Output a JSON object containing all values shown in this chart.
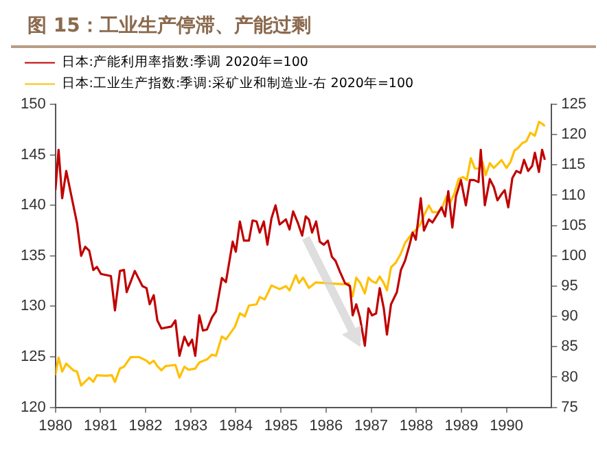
{
  "chart_data": {
    "type": "line",
    "title": "图 15：工业生产停滞、产能过剩",
    "xlim": [
      1980,
      1991
    ],
    "xticks": [
      1980,
      1981,
      1982,
      1983,
      1984,
      1985,
      1986,
      1987,
      1988,
      1989,
      1990
    ],
    "ylim": [
      120,
      150
    ],
    "yticks": [
      120,
      125,
      130,
      135,
      140,
      145,
      150
    ],
    "y2lim": [
      75,
      125
    ],
    "y2ticks": [
      75,
      80,
      85,
      90,
      95,
      100,
      105,
      110,
      115,
      120,
      125
    ],
    "grid": false,
    "legend": "top left",
    "marker": "none",
    "line_style": "solid",
    "series": [
      {
        "name": "日本:产能利用率指数:季调 2020年=100",
        "color": "#c00000",
        "axis": "y",
        "x": [
          1980.0,
          1980.07,
          1980.15,
          1980.24,
          1980.48,
          1980.57,
          1980.66,
          1980.75,
          1980.84,
          1980.92,
          1981.01,
          1981.23,
          1981.32,
          1981.43,
          1981.52,
          1981.58,
          1981.76,
          1981.93,
          1982.02,
          1982.09,
          1982.18,
          1982.26,
          1982.35,
          1982.57,
          1982.66,
          1982.75,
          1982.86,
          1982.95,
          1983.03,
          1983.1,
          1983.19,
          1983.27,
          1983.36,
          1983.47,
          1983.56,
          1983.69,
          1983.78,
          1983.93,
          1984.0,
          1984.09,
          1984.18,
          1984.29,
          1984.37,
          1984.46,
          1984.53,
          1984.62,
          1984.7,
          1984.79,
          1984.88,
          1984.97,
          1985.11,
          1985.19,
          1985.27,
          1985.38,
          1985.47,
          1985.55,
          1985.62,
          1985.69,
          1985.78,
          1985.86,
          1985.95,
          1986.04,
          1986.13,
          1986.21,
          1986.31,
          1986.42,
          1986.53,
          1986.59,
          1986.67,
          1986.75,
          1986.86,
          1986.94,
          1987.02,
          1987.11,
          1987.19,
          1987.28,
          1987.35,
          1987.44,
          1987.57,
          1987.66,
          1987.75,
          1987.84,
          1987.92,
          1987.99,
          1988.1,
          1988.17,
          1988.28,
          1988.36,
          1988.47,
          1988.56,
          1988.64,
          1988.71,
          1988.8,
          1988.88,
          1988.99,
          1989.1,
          1989.19,
          1989.28,
          1989.38,
          1989.43,
          1989.52,
          1989.63,
          1989.72,
          1989.8,
          1989.89,
          1989.96,
          1990.04,
          1990.13,
          1990.22,
          1990.31,
          1990.39,
          1990.48,
          1990.57,
          1990.63,
          1990.72,
          1990.79,
          1990.85
        ],
        "values": [
          141.5,
          145.5,
          140.7,
          143.4,
          138.2,
          135,
          135.9,
          135.5,
          133.6,
          133.9,
          133.2,
          133,
          129.6,
          133.5,
          133.6,
          131.4,
          133.5,
          132,
          131.8,
          130.2,
          131.1,
          128.6,
          127.8,
          128,
          128.6,
          125.1,
          127,
          126.1,
          126.7,
          125.1,
          129.1,
          127.6,
          127.7,
          128.9,
          129.5,
          132.8,
          132.4,
          136.4,
          135.4,
          138.4,
          136.5,
          136.5,
          138.5,
          138.4,
          137.3,
          138.4,
          136.1,
          138.7,
          140,
          138.1,
          138.6,
          137.6,
          139.4,
          138.2,
          137,
          138.9,
          138.6,
          137.3,
          138.4,
          136.4,
          136.1,
          136.5,
          134.9,
          134.5,
          133.4,
          132.3,
          132,
          129.1,
          130.2,
          128.9,
          126.1,
          129.8,
          129.1,
          129.3,
          131.8,
          129.8,
          127.2,
          130.2,
          131.4,
          133.6,
          134.5,
          135.9,
          137.3,
          136.6,
          140.7,
          137.5,
          138.6,
          138.3,
          139.1,
          139.8,
          138.9,
          141.4,
          137.8,
          140.9,
          142.5,
          140,
          142.5,
          142.5,
          142.3,
          145.5,
          140,
          142.6,
          141.8,
          140.5,
          141.1,
          141.5,
          139.8,
          142.7,
          143.4,
          143.2,
          144.5,
          143.4,
          143.9,
          145.2,
          143.3,
          145.5,
          144.5
        ]
      },
      {
        "name": "日本:工业生产指数:季调:采矿业和制造业-右 2020年=100",
        "color": "#ffc000",
        "axis": "y2",
        "x": [
          1980.0,
          1980.07,
          1980.15,
          1980.24,
          1980.4,
          1980.48,
          1980.57,
          1980.75,
          1980.84,
          1980.92,
          1981.12,
          1981.25,
          1981.32,
          1981.43,
          1981.52,
          1981.67,
          1981.85,
          1982.02,
          1982.09,
          1982.18,
          1982.26,
          1982.35,
          1982.44,
          1982.66,
          1982.75,
          1982.86,
          1982.95,
          1983.1,
          1983.19,
          1983.36,
          1983.47,
          1983.56,
          1983.69,
          1983.78,
          1983.98,
          1984.09,
          1984.2,
          1984.29,
          1984.46,
          1984.53,
          1984.64,
          1984.79,
          1984.97,
          1985.11,
          1985.19,
          1985.33,
          1985.4,
          1985.49,
          1985.62,
          1985.77,
          1986.42,
          1986.5,
          1986.59,
          1986.67,
          1986.76,
          1986.86,
          1986.94,
          1987.02,
          1987.11,
          1987.19,
          1987.28,
          1987.35,
          1987.44,
          1987.55,
          1987.66,
          1987.75,
          1987.84,
          1987.92,
          1988.01,
          1988.1,
          1988.18,
          1988.28,
          1988.36,
          1988.47,
          1988.56,
          1988.67,
          1988.75,
          1988.84,
          1988.94,
          1989.04,
          1989.12,
          1989.21,
          1989.3,
          1989.39,
          1989.47,
          1989.54,
          1989.63,
          1989.72,
          1989.8,
          1989.89,
          1990.0,
          1990.09,
          1990.18,
          1990.26,
          1990.35,
          1990.44,
          1990.53,
          1990.63,
          1990.72,
          1990.79,
          1990.85
        ],
        "values": [
          80.3,
          83.2,
          80.9,
          82.2,
          81.1,
          80.9,
          78.6,
          79.9,
          79.2,
          80.3,
          80.2,
          80.3,
          79.2,
          81.4,
          81.7,
          83.3,
          83.3,
          82.7,
          82.2,
          82.7,
          81.8,
          81.1,
          81.8,
          82,
          79.9,
          81.7,
          81.2,
          81.4,
          82.4,
          82.9,
          83.7,
          83.5,
          86.7,
          86.2,
          88.3,
          90.5,
          90,
          91.8,
          92,
          93.2,
          92.8,
          95.1,
          94.5,
          95,
          94.3,
          96.8,
          95.5,
          96.4,
          94.7,
          95.6,
          95.3,
          95.5,
          93.3,
          96.4,
          95.5,
          93.8,
          96.4,
          95.8,
          95.5,
          96.6,
          95.5,
          94.3,
          98.1,
          98.9,
          100.4,
          102.1,
          103,
          103.8,
          104.4,
          105.3,
          106.8,
          108.3,
          107.2,
          107.2,
          107.7,
          109.8,
          108.7,
          110.2,
          112.7,
          113,
          112.5,
          116.1,
          114.4,
          114.4,
          115.5,
          113.3,
          115.3,
          114.5,
          115.1,
          115.8,
          114.5,
          115.5,
          117.4,
          117.8,
          118.6,
          118.9,
          120.3,
          119.8,
          122.1,
          121.8,
          121.4
        ]
      }
    ]
  }
}
